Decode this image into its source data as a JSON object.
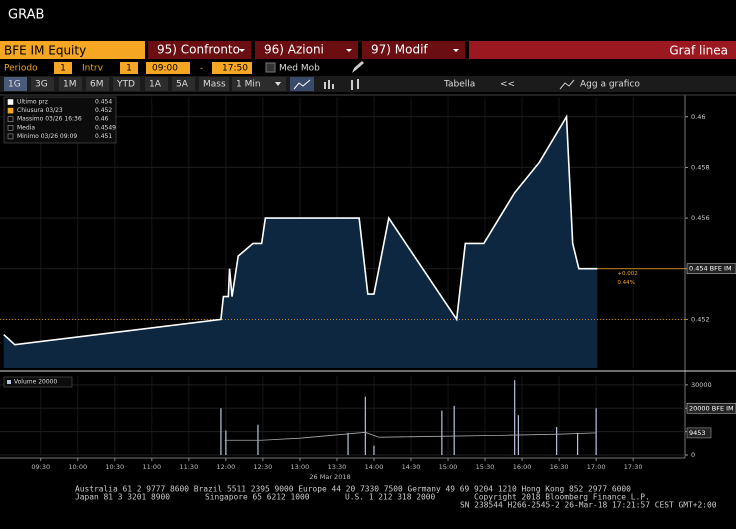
{
  "header": {
    "title": "GRAB"
  },
  "command_bar": {
    "security": "BFE IM Equity",
    "buttons": [
      "95) Confronto",
      "96) Azioni",
      "97) Modif"
    ],
    "view": "Graf linea"
  },
  "settings": {
    "period_label": "Periodo",
    "period_value": "1",
    "interval_label": "Intrv",
    "interval_value": "1",
    "start": "09:00",
    "dash": "-",
    "end": "17:50",
    "moving_average": "Med Mob"
  },
  "toolbar": {
    "ranges": [
      "1G",
      "3G",
      "1M",
      "6M",
      "YTD",
      "1A",
      "5A",
      "Mass"
    ],
    "interval": "1 Min",
    "table": "Tabella",
    "back": "<<",
    "add": "Agg a grafico"
  },
  "chart_data": [
    {
      "type": "line",
      "fill": true,
      "color": "#ffffff",
      "fill_color": "#0d2740",
      "legend_items": [
        {
          "label": "Ultimo prz",
          "value": 0.454
        },
        {
          "label": "Chiusura 03/23",
          "value": 0.452
        },
        {
          "label": "Massimo 03/26 16:36",
          "value": 0.46
        },
        {
          "label": "Media",
          "value": 0.4549
        },
        {
          "label": "Minimo 03/26 09:09",
          "value": 0.451
        }
      ],
      "x": [
        "09:00",
        "09:09",
        "11:56",
        "11:58",
        "12:02",
        "12:03",
        "12:05",
        "12:10",
        "12:22",
        "12:29",
        "12:32",
        "13:48",
        "13:55",
        "14:00",
        "14:12",
        "15:07",
        "15:14",
        "15:29",
        "15:54",
        "16:14",
        "16:36",
        "16:41",
        "16:46",
        "17:01"
      ],
      "series": [
        {
          "name": "BFE IM",
          "values": [
            0.4514,
            0.451,
            0.452,
            0.4529,
            0.4529,
            0.454,
            0.4529,
            0.4545,
            0.455,
            0.455,
            0.456,
            0.456,
            0.453,
            0.453,
            0.456,
            0.452,
            0.455,
            0.455,
            0.457,
            0.4582,
            0.46,
            0.455,
            0.454,
            0.454
          ]
        }
      ],
      "change_labels": [
        "+0.002",
        "0.44%"
      ],
      "date_label": "26 Mar 2018",
      "xlim": [
        "08:57",
        "18:12"
      ],
      "xticks": [
        "09:30",
        "10:00",
        "10:30",
        "11:00",
        "11:30",
        "12:00",
        "12:30",
        "13:00",
        "13:30",
        "14:00",
        "14:30",
        "15:00",
        "15:30",
        "16:00",
        "16:30",
        "17:00",
        "17:30"
      ],
      "ylim": [
        0.45008,
        0.46078
      ],
      "yticks": [
        0.452,
        {
          "value": 0.454,
          "label": "0.454 BFE IM"
        },
        0.456,
        0.458,
        0.46
      ]
    },
    {
      "type": "bar",
      "color": "#b8c4e0",
      "legend_label": "Volume 20000",
      "x": [
        "11:56",
        "12:00",
        "12:26",
        "13:39",
        "13:53",
        "14:00",
        "14:55",
        "15:05",
        "15:54",
        "15:57",
        "16:28",
        "16:45",
        "17:00"
      ],
      "values": [
        20000,
        10500,
        13000,
        9500,
        25000,
        4000,
        19000,
        21000,
        32000,
        17000,
        12000,
        9500,
        20000
      ],
      "ma": {
        "x": [
          "11:59",
          "12:29",
          "13:00",
          "13:53",
          "14:04",
          "14:53",
          "15:41",
          "16:30",
          "17:00"
        ],
        "values": [
          6300,
          6300,
          7200,
          9700,
          7600,
          8000,
          8400,
          8900,
          9453
        ],
        "color": "#aaaaaa"
      },
      "ma_label": 9453,
      "xlim": [
        "08:57",
        "18:12"
      ],
      "ylim": [
        0,
        33800
      ],
      "yticks": [
        0,
        10000,
        {
          "value": 20000,
          "label": "20000 BFE IM"
        },
        30000
      ]
    }
  ],
  "footer": {
    "contacts": "Australia 61 2 9777 8600 Brazil 5511 2395 9000 Europe 44 20 7330 7500 Germany 49 69 9204 1210 Hong Kong 852 2977 6000",
    "japan": "Japan 81 3 3201 8900",
    "singapore": "Singapore 65 6212 1000",
    "us": "U.S. 1 212 318 2000",
    "copyright": "Copyright 2018 Bloomberg Finance L.P.",
    "serial": "SN 238544 H266-2545-2 26-Mar-18 17:21:57 CEST GMT+2:00"
  }
}
